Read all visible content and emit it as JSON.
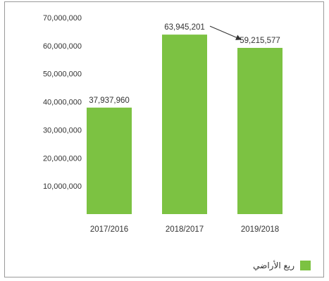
{
  "chart_data": {
    "type": "bar",
    "categories": [
      "2017/2016",
      "2018/2017",
      "2019/2018"
    ],
    "values": [
      37937960,
      63945201,
      59215577
    ],
    "value_labels": [
      "37,937,960",
      "63,945,201",
      "59,215,577"
    ],
    "ylim": [
      0,
      70000000
    ],
    "yticks": [
      10000000,
      20000000,
      30000000,
      40000000,
      50000000,
      60000000,
      70000000
    ],
    "ytick_labels": [
      "10,000,000",
      "20,000,000",
      "30,000,000",
      "40,000,000",
      "50,000,000",
      "60,000,000",
      "70,000,000"
    ],
    "grid": false,
    "legend": {
      "label": "ريع الأراضي",
      "position": "bottom-right"
    },
    "bar_color": "#7cc242",
    "annotation": {
      "type": "arrow",
      "from_category": "2018/2017",
      "to_category": "2019/2018"
    }
  }
}
